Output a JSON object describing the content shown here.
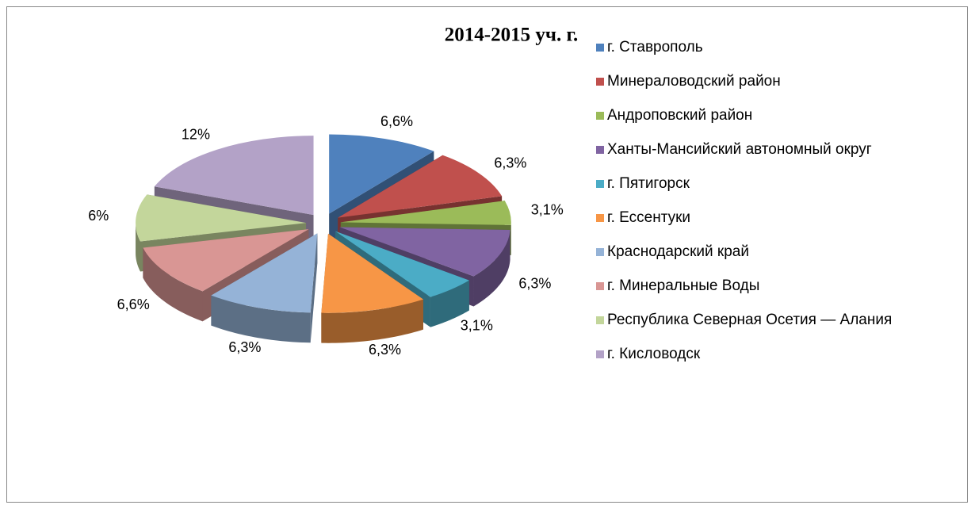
{
  "chart_data": {
    "type": "pie3d",
    "title": "2014-2015 уч. г.",
    "categories": [
      "г. Ставрополь",
      "Минераловодский район",
      "Андроповский район",
      "Ханты-Мансийский автономный округ",
      "г. Пятигорск",
      "г. Ессентуки",
      "Краснодарский край",
      "г. Минеральные Воды",
      "Республика Северная Осетия — Алания",
      "г. Кисловодск"
    ],
    "values": [
      6.6,
      6.3,
      3.1,
      6.3,
      3.1,
      6.3,
      6.3,
      6.6,
      6,
      12
    ],
    "value_labels": [
      "6,6%",
      "6,3%",
      "3,1%",
      "6,3%",
      "3,1%",
      "6,3%",
      "6,3%",
      "6,6%",
      "6%",
      "12%"
    ],
    "colors": [
      "#4f81bd",
      "#c0504d",
      "#9bbb59",
      "#8064a2",
      "#4bacc6",
      "#f79646",
      "#95b3d7",
      "#d99694",
      "#c3d69b",
      "#b3a2c7"
    ],
    "legend": "right"
  }
}
